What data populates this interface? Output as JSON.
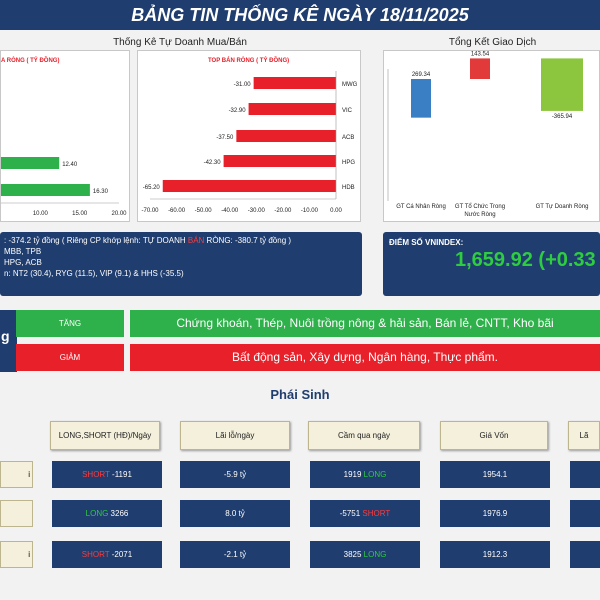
{
  "header": {
    "title": "BẢNG TIN THỐNG KÊ NGÀY 18/11/2025"
  },
  "tudoanh": {
    "title": "Thống Kê Tự Doanh Mua/Bán",
    "left_subtitle": "A RÒNG ( TỶ ĐỒNG)",
    "right_subtitle": "TOP BÁN RÒNG ( TỶ ĐỒNG)"
  },
  "giaodich": {
    "title": "Tổng Kết Giao Dịch"
  },
  "chart_data": [
    {
      "type": "bar",
      "orientation": "horizontal",
      "title": "A RÒNG ( TỶ ĐỒNG)",
      "values": [
        12.4,
        16.3
      ],
      "value_labels": [
        "12.40",
        "16.30"
      ],
      "xlim": [
        5,
        20
      ],
      "xticks": [
        "10.00",
        "15.00",
        "20.00"
      ],
      "color": "#2eb04a"
    },
    {
      "type": "bar",
      "orientation": "horizontal",
      "title": "TOP BÁN RÒNG ( TỶ ĐỒNG)",
      "categories": [
        "MWG",
        "VIC",
        "ACB",
        "HPG",
        "HDB"
      ],
      "values": [
        -31.0,
        -32.9,
        -37.5,
        -42.3,
        -65.2
      ],
      "value_labels": [
        "-31.00",
        "-32.90",
        "-37.50",
        "-42.30",
        "-65.20"
      ],
      "xlim": [
        -70,
        0
      ],
      "xticks": [
        "-70.00",
        "-60.00",
        "-50.00",
        "-40.00",
        "-30.00",
        "-20.00",
        "-10.00",
        "0.00"
      ],
      "color": "#e8202a"
    },
    {
      "type": "bar",
      "title": "Tổng Kết Giao Dịch",
      "categories": [
        "GT Cá Nhân Ròng",
        "GT Tổ Chức Trong Nước Ròng",
        "GT Tự Doanh Ròng"
      ],
      "values": [
        269.34,
        143.54,
        -365.94
      ],
      "value_labels": [
        "269.34",
        "143.54",
        "-365.94"
      ],
      "colors": [
        "#3a7fc4",
        "#e23a3a",
        "#8cc63f"
      ]
    }
  ],
  "summary": {
    "line1_a": ": -374.2 tỷ đồng ( Riêng CP khớp lệnh: TỰ DOANH ",
    "line1_red": "BÁN",
    "line1_b": " RÒNG: -380.7 tỷ đồng )",
    "line2": "MBB, TPB",
    "line3": "HPG, ACB",
    "line4": "n: NT2 (30.4), RYG (11.5), VIP (9.1) & HHS (-35.5)"
  },
  "vnindex": {
    "label": "ĐIỂM SỐ VNINDEX:",
    "value": "1,659.92 (+0.33"
  },
  "sectors": {
    "left_glyph": "g",
    "up_label": "TĂNG",
    "up_value": "Chứng khoán, Thép, Nuôi trồng nông & hải sản, Bán lẻ, CNTT, Kho bãi",
    "down_label": "GIẢM",
    "down_value": "Bất động sản, Xây dựng, Ngân hàng, Thực phẩm."
  },
  "phai_sinh": {
    "title": "Phái Sinh",
    "headers": [
      "LONG,SHORT (HĐ)/Ngày",
      "Lãi lỗ/ngày",
      "Cầm qua ngày",
      "Giá Vốn",
      "Lã"
    ],
    "row_labels": [
      "i",
      "",
      "i"
    ],
    "rows": [
      {
        "pos_type": "SHORT",
        "pos_val": "-1191",
        "pnl": "-5.9 tỷ",
        "hold_val": "1919",
        "hold_type": "LONG",
        "cost": "1954.1"
      },
      {
        "pos_type": "LONG",
        "pos_val": "3266",
        "pnl": "8.0 tỷ",
        "hold_val": "-5751",
        "hold_type": "SHORT",
        "cost": "1976.9"
      },
      {
        "pos_type": "SHORT",
        "pos_val": "-2071",
        "pnl": "-2.1 tỷ",
        "hold_val": "3825",
        "hold_type": "LONG",
        "cost": "1912.3"
      }
    ]
  }
}
